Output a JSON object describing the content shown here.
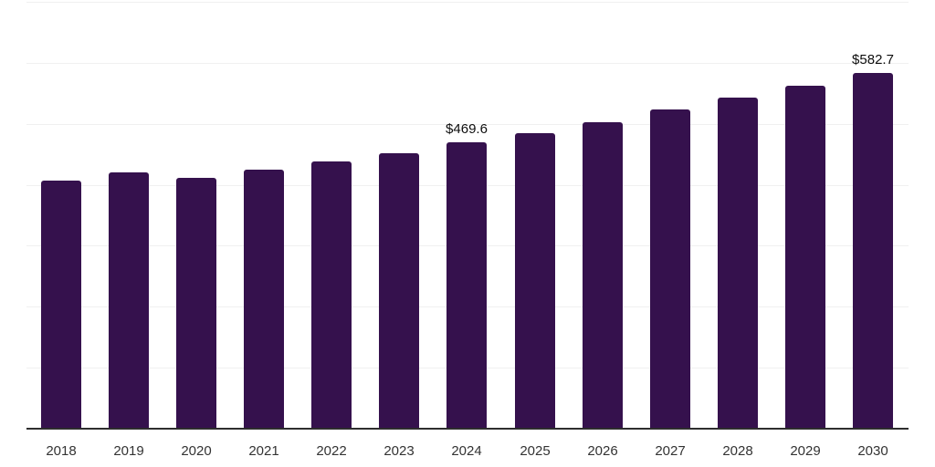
{
  "chart_data": {
    "type": "bar",
    "title": "",
    "xlabel": "",
    "ylabel": "",
    "categories": [
      "2018",
      "2019",
      "2020",
      "2021",
      "2022",
      "2023",
      "2024",
      "2025",
      "2026",
      "2027",
      "2028",
      "2029",
      "2030"
    ],
    "values": [
      406.5,
      419.8,
      410.9,
      424.2,
      437.6,
      451.0,
      469.6,
      485.3,
      503.1,
      523.9,
      543.3,
      562.6,
      582.7
    ],
    "data_labels": [
      {
        "category": "2024",
        "text": "$469.6"
      },
      {
        "category": "2030",
        "text": "$582.7"
      }
    ],
    "ylim": [
      0,
      700
    ],
    "gridline_step": 100,
    "grid": "horizontal",
    "y_tick_labels_shown": false,
    "legend_position": "none",
    "colors": {
      "bar": "#35114D",
      "gridline": "#f0f0f0",
      "axis_line": "#2e2e2e",
      "x_tick_label": "#333333",
      "value_label": "#0d0d0d",
      "background": "#ffffff"
    }
  }
}
